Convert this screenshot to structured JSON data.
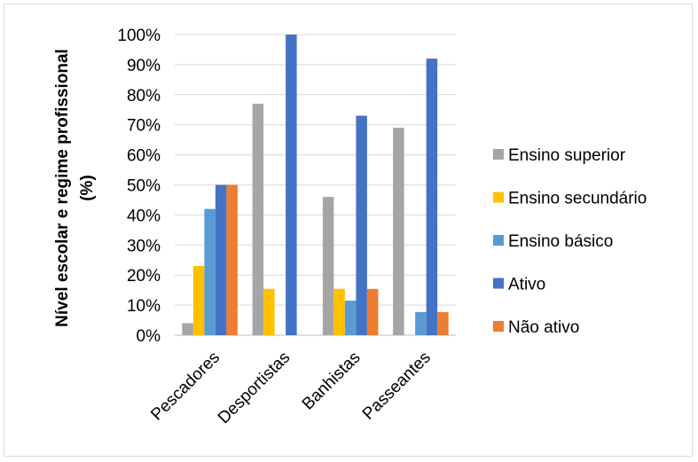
{
  "chart_data": {
    "type": "bar",
    "ylabel_line1": "Nível escolar e regime profissional",
    "ylabel_line2": "(%)",
    "categories": [
      "Pescadores",
      "Desportistas",
      "Banhistas",
      "Passeantes"
    ],
    "ylim": [
      0,
      100
    ],
    "yticks": [
      "0%",
      "10%",
      "20%",
      "30%",
      "40%",
      "50%",
      "60%",
      "70%",
      "80%",
      "90%",
      "100%"
    ],
    "grid": true,
    "legend_position": "right",
    "series": [
      {
        "name": "Ensino superior",
        "color": "#a5a5a5",
        "values": [
          4,
          77,
          46,
          69
        ]
      },
      {
        "name": "Ensino secundário",
        "color": "#ffc000",
        "values": [
          23,
          15.4,
          15.4,
          0
        ]
      },
      {
        "name": "Ensino básico",
        "color": "#5b9bd5",
        "values": [
          42,
          0,
          11.5,
          7.7
        ]
      },
      {
        "name": "Ativo",
        "color": "#4472c4",
        "values": [
          50,
          100,
          73,
          92
        ]
      },
      {
        "name": "Não ativo",
        "color": "#ed7d31",
        "values": [
          50,
          0,
          15.4,
          7.7
        ]
      }
    ]
  }
}
